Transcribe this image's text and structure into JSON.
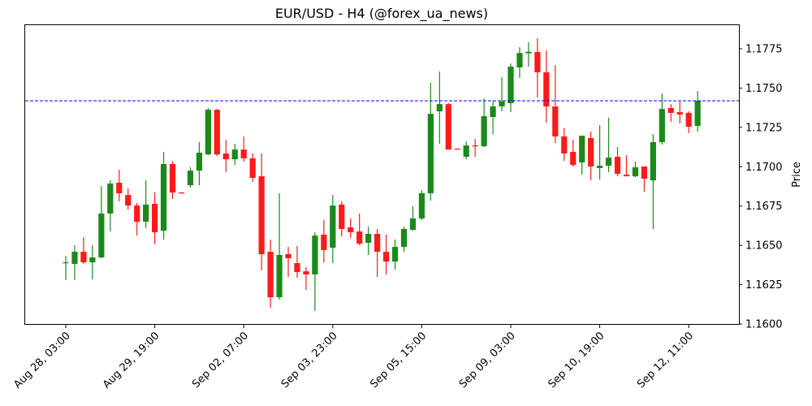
{
  "chart_data": {
    "type": "candlestick",
    "title": "EUR/USD - H4 (@forex_ua_news)",
    "xlabel": "",
    "ylabel": "Price",
    "ylim": [
      1.16,
      1.179
    ],
    "grid": false,
    "legend": null,
    "y_ticks": [
      "1.1600",
      "1.1625",
      "1.1650",
      "1.1675",
      "1.1700",
      "1.1725",
      "1.1750",
      "1.1775"
    ],
    "x_ticks": [
      {
        "index": 0,
        "label": "Aug 28, 03:00"
      },
      {
        "index": 10,
        "label": "Aug 29, 19:00"
      },
      {
        "index": 20,
        "label": "Sep 02, 07:00"
      },
      {
        "index": 30,
        "label": "Sep 03, 23:00"
      },
      {
        "index": 40,
        "label": "Sep 05, 15:00"
      },
      {
        "index": 50,
        "label": "Sep 09, 03:00"
      },
      {
        "index": 60,
        "label": "Sep 10, 19:00"
      },
      {
        "index": 70,
        "label": "Sep 12, 11:00"
      }
    ],
    "reference_line": {
      "value": 1.17419,
      "color": "#0000ff",
      "style": "dashed"
    },
    "colors": {
      "up": "#1a8a1a",
      "down": "#ff1a1a"
    },
    "ohlc_columns": [
      "open",
      "high",
      "low",
      "close"
    ],
    "ohlc": [
      [
        1.16387,
        1.16433,
        1.16279,
        1.16392
      ],
      [
        1.16382,
        1.16501,
        1.16279,
        1.16459
      ],
      [
        1.16459,
        1.16552,
        1.16382,
        1.16392
      ],
      [
        1.16392,
        1.16501,
        1.16284,
        1.16423
      ],
      [
        1.16423,
        1.16877,
        1.16418,
        1.16702
      ],
      [
        1.16702,
        1.16913,
        1.16588,
        1.16893
      ],
      [
        1.16898,
        1.1698,
        1.16779,
        1.16831
      ],
      [
        1.1682,
        1.16862,
        1.16728,
        1.16753
      ],
      [
        1.16753,
        1.16769,
        1.16562,
        1.1665
      ],
      [
        1.1665,
        1.16913,
        1.16609,
        1.16759
      ],
      [
        1.16764,
        1.16836,
        1.16506,
        1.16583
      ],
      [
        1.16593,
        1.17094,
        1.16537,
        1.17017
      ],
      [
        1.17017,
        1.17037,
        1.16795,
        1.16836
      ],
      [
        1.16836,
        1.16838,
        1.16831,
        1.16833
      ],
      [
        1.16882,
        1.16996,
        1.16867,
        1.16975
      ],
      [
        1.16975,
        1.17156,
        1.16882,
        1.17089
      ],
      [
        1.17078,
        1.17373,
        1.17073,
        1.17362
      ],
      [
        1.17362,
        1.17367,
        1.17068,
        1.17078
      ],
      [
        1.17084,
        1.17171,
        1.16965,
        1.17047
      ],
      [
        1.17047,
        1.17146,
        1.17011,
        1.17109
      ],
      [
        1.17109,
        1.17192,
        1.17032,
        1.17053
      ],
      [
        1.17053,
        1.17084,
        1.16903,
        1.16929
      ],
      [
        1.16939,
        1.17084,
        1.16341,
        1.16444
      ],
      [
        1.16459,
        1.16537,
        1.16103,
        1.1617
      ],
      [
        1.1617,
        1.16831,
        1.16155,
        1.16439
      ],
      [
        1.16444,
        1.1649,
        1.16299,
        1.16418
      ],
      [
        1.16387,
        1.16495,
        1.16294,
        1.1633
      ],
      [
        1.16335,
        1.16361,
        1.16217,
        1.16315
      ],
      [
        1.16315,
        1.16583,
        1.16083,
        1.16562
      ],
      [
        1.16568,
        1.1666,
        1.16392,
        1.1647
      ],
      [
        1.16485,
        1.1682,
        1.16387,
        1.16753
      ],
      [
        1.16759,
        1.16779,
        1.16557,
        1.16604
      ],
      [
        1.16614,
        1.16671,
        1.16547,
        1.16583
      ],
      [
        1.16588,
        1.16702,
        1.16501,
        1.16511
      ],
      [
        1.16516,
        1.16619,
        1.16439,
        1.16573
      ],
      [
        1.16573,
        1.16604,
        1.16299,
        1.16459
      ],
      [
        1.16459,
        1.16568,
        1.16315,
        1.16397
      ],
      [
        1.16397,
        1.16537,
        1.16346,
        1.1649
      ],
      [
        1.1649,
        1.16619,
        1.16459,
        1.16604
      ],
      [
        1.16599,
        1.16748,
        1.16593,
        1.16671
      ],
      [
        1.16671,
        1.16851,
        1.1666,
        1.16831
      ],
      [
        1.16831,
        1.17533,
        1.16784,
        1.17336
      ],
      [
        1.17352,
        1.17605,
        1.17146,
        1.17398
      ],
      [
        1.17398,
        1.17404,
        1.17109,
        1.17109
      ],
      [
        1.17115,
        1.17117,
        1.1711,
        1.17112
      ],
      [
        1.17063,
        1.17161,
        1.17047,
        1.17135
      ],
      [
        1.17135,
        1.17177,
        1.17063,
        1.1713
      ],
      [
        1.1713,
        1.17434,
        1.17125,
        1.17321
      ],
      [
        1.17316,
        1.17419,
        1.17207,
        1.17383
      ],
      [
        1.17383,
        1.17569,
        1.17352,
        1.17414
      ],
      [
        1.17404,
        1.17656,
        1.17347,
        1.17636
      ],
      [
        1.17631,
        1.1776,
        1.17564,
        1.17723
      ],
      [
        1.17721,
        1.17791,
        1.17636,
        1.17731
      ],
      [
        1.17729,
        1.17816,
        1.1744,
        1.176
      ],
      [
        1.176,
        1.17739,
        1.1728,
        1.17383
      ],
      [
        1.17383,
        1.17646,
        1.17151,
        1.17192
      ],
      [
        1.17192,
        1.17244,
        1.17037,
        1.17084
      ],
      [
        1.17094,
        1.17171,
        1.17001,
        1.17011
      ],
      [
        1.17027,
        1.17197,
        1.16949,
        1.17197
      ],
      [
        1.17182,
        1.17223,
        1.16913,
        1.17001
      ],
      [
        1.16991,
        1.17264,
        1.16918,
        1.17006
      ],
      [
        1.17006,
        1.17311,
        1.16965,
        1.17058
      ],
      [
        1.17063,
        1.17125,
        1.16939,
        1.16955
      ],
      [
        1.16949,
        1.17073,
        1.16939,
        1.16939
      ],
      [
        1.16939,
        1.17032,
        1.16934,
        1.16996
      ],
      [
        1.17001,
        1.17001,
        1.16841,
        1.16924
      ],
      [
        1.16913,
        1.17207,
        1.16604,
        1.17156
      ],
      [
        1.17156,
        1.17465,
        1.1714,
        1.17367
      ],
      [
        1.17373,
        1.17398,
        1.17285,
        1.17342
      ],
      [
        1.17347,
        1.17414,
        1.17275,
        1.17331
      ],
      [
        1.17342,
        1.17352,
        1.17213,
        1.17254
      ],
      [
        1.17259,
        1.17481,
        1.17223,
        1.17419
      ]
    ]
  }
}
